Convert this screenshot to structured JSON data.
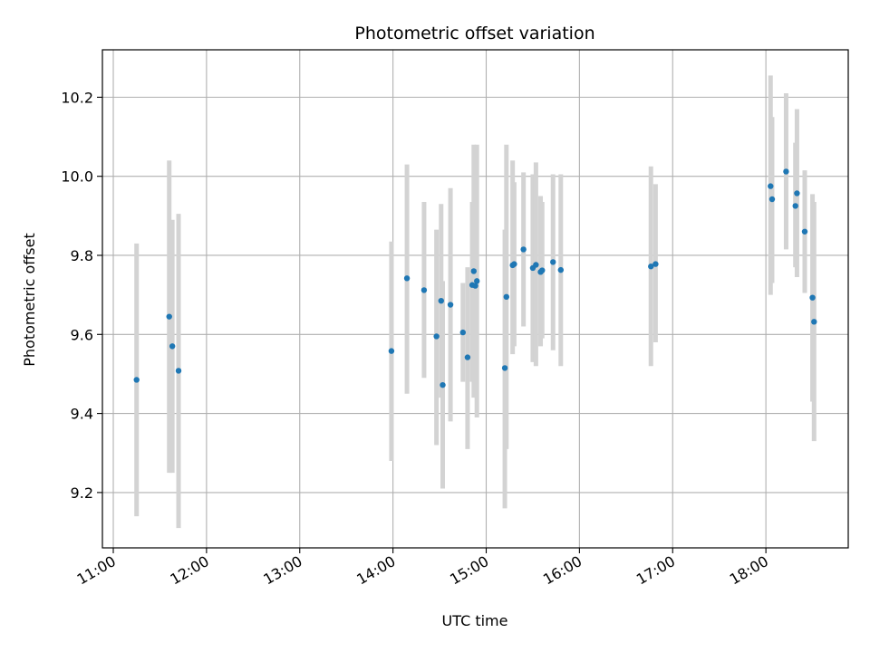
{
  "chart_data": {
    "type": "scatter",
    "title": "Photometric offset variation",
    "xlabel": "UTC time",
    "ylabel": "Photometric offset",
    "x_tick_labels": [
      "11:00",
      "12:00",
      "13:00",
      "14:00",
      "15:00",
      "16:00",
      "17:00",
      "18:00"
    ],
    "y_tick_labels": [
      "9.2",
      "9.4",
      "9.6",
      "9.8",
      "10.0",
      "10.2"
    ],
    "xlim": [
      "10:53",
      "18:53"
    ],
    "ylim": [
      9.06,
      10.32
    ],
    "grid": true,
    "error_bars": true,
    "colors": {
      "points": "#1f77b4",
      "error_bars": "#d3d3d3",
      "grid": "#b0b0b0"
    },
    "points": [
      {
        "x": "11:15",
        "y": 9.485,
        "y_low": 9.14,
        "y_high": 9.83
      },
      {
        "x": "11:36",
        "y": 9.645,
        "y_low": 9.25,
        "y_high": 10.04
      },
      {
        "x": "11:38",
        "y": 9.57,
        "y_low": 9.25,
        "y_high": 9.89
      },
      {
        "x": "11:42",
        "y": 9.508,
        "y_low": 9.11,
        "y_high": 9.905
      },
      {
        "x": "13:59",
        "y": 9.558,
        "y_low": 9.28,
        "y_high": 9.835
      },
      {
        "x": "14:09",
        "y": 9.742,
        "y_low": 9.45,
        "y_high": 10.03
      },
      {
        "x": "14:20",
        "y": 9.712,
        "y_low": 9.49,
        "y_high": 9.935
      },
      {
        "x": "14:28",
        "y": 9.595,
        "y_low": 9.32,
        "y_high": 9.865
      },
      {
        "x": "14:31",
        "y": 9.685,
        "y_low": 9.44,
        "y_high": 9.93
      },
      {
        "x": "14:32",
        "y": 9.472,
        "y_low": 9.21,
        "y_high": 9.735
      },
      {
        "x": "14:37",
        "y": 9.675,
        "y_low": 9.38,
        "y_high": 9.97
      },
      {
        "x": "14:45",
        "y": 9.605,
        "y_low": 9.48,
        "y_high": 9.73
      },
      {
        "x": "14:48",
        "y": 9.542,
        "y_low": 9.31,
        "y_high": 9.77
      },
      {
        "x": "14:51",
        "y": 9.725,
        "y_low": 9.48,
        "y_high": 9.935
      },
      {
        "x": "14:52",
        "y": 9.76,
        "y_low": 9.44,
        "y_high": 10.08
      },
      {
        "x": "14:53",
        "y": 9.723,
        "y_low": 9.5,
        "y_high": 9.955
      },
      {
        "x": "14:54",
        "y": 9.735,
        "y_low": 9.39,
        "y_high": 10.08
      },
      {
        "x": "15:12",
        "y": 9.515,
        "y_low": 9.16,
        "y_high": 9.865
      },
      {
        "x": "15:13",
        "y": 9.695,
        "y_low": 9.31,
        "y_high": 10.08
      },
      {
        "x": "15:17",
        "y": 9.775,
        "y_low": 9.55,
        "y_high": 10.04
      },
      {
        "x": "15:18",
        "y": 9.778,
        "y_low": 9.57,
        "y_high": 9.985
      },
      {
        "x": "15:24",
        "y": 9.815,
        "y_low": 9.62,
        "y_high": 10.01
      },
      {
        "x": "15:30",
        "y": 9.768,
        "y_low": 9.53,
        "y_high": 10.005
      },
      {
        "x": "15:32",
        "y": 9.776,
        "y_low": 9.52,
        "y_high": 10.035
      },
      {
        "x": "15:35",
        "y": 9.758,
        "y_low": 9.57,
        "y_high": 9.95
      },
      {
        "x": "15:36",
        "y": 9.762,
        "y_low": 9.59,
        "y_high": 9.935
      },
      {
        "x": "15:43",
        "y": 9.783,
        "y_low": 9.56,
        "y_high": 10.005
      },
      {
        "x": "15:48",
        "y": 9.763,
        "y_low": 9.52,
        "y_high": 10.005
      },
      {
        "x": "16:46",
        "y": 9.772,
        "y_low": 9.52,
        "y_high": 10.025
      },
      {
        "x": "16:49",
        "y": 9.778,
        "y_low": 9.58,
        "y_high": 9.98
      },
      {
        "x": "18:03",
        "y": 9.975,
        "y_low": 9.7,
        "y_high": 10.255
      },
      {
        "x": "18:04",
        "y": 9.942,
        "y_low": 9.73,
        "y_high": 10.15
      },
      {
        "x": "18:13",
        "y": 10.012,
        "y_low": 9.815,
        "y_high": 10.21
      },
      {
        "x": "18:19",
        "y": 9.925,
        "y_low": 9.77,
        "y_high": 10.085
      },
      {
        "x": "18:20",
        "y": 9.957,
        "y_low": 9.745,
        "y_high": 10.17
      },
      {
        "x": "18:25",
        "y": 9.86,
        "y_low": 9.705,
        "y_high": 10.015
      },
      {
        "x": "18:30",
        "y": 9.693,
        "y_low": 9.43,
        "y_high": 9.955
      },
      {
        "x": "18:31",
        "y": 9.632,
        "y_low": 9.33,
        "y_high": 9.935
      }
    ]
  }
}
